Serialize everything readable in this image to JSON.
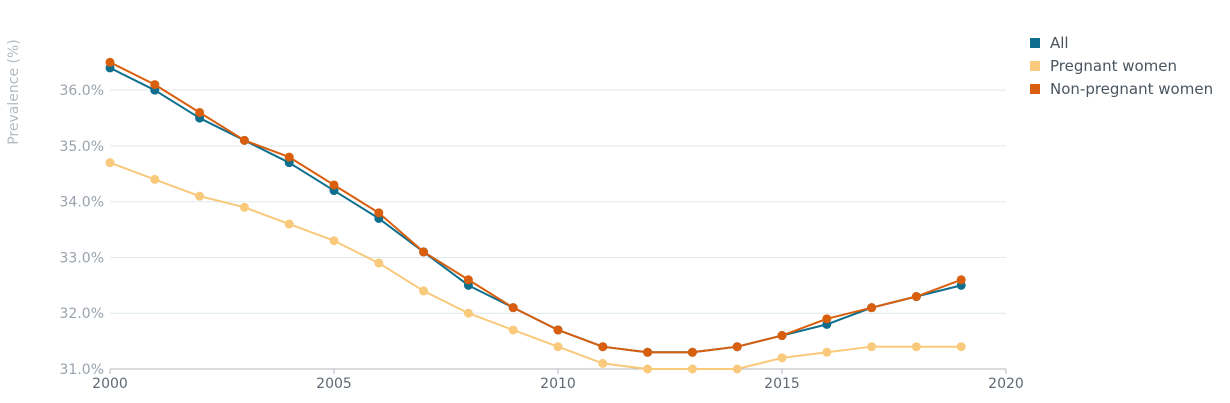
{
  "chart_data": {
    "type": "line",
    "title": "",
    "xlabel": "",
    "ylabel": "Prevalence (%)",
    "x": [
      2000,
      2001,
      2002,
      2003,
      2004,
      2005,
      2006,
      2007,
      2008,
      2009,
      2010,
      2011,
      2012,
      2013,
      2014,
      2015,
      2016,
      2017,
      2018,
      2019
    ],
    "xlim": [
      2000,
      2020
    ],
    "xticks": [
      "2000",
      "2005",
      "2010",
      "2015",
      "2020"
    ],
    "ylim": [
      31.0,
      36.9
    ],
    "yticks": [
      "31.0%",
      "32.0%",
      "33.0%",
      "34.0%",
      "35.0%",
      "36.0%"
    ],
    "grid": true,
    "legend_position": "top-right",
    "series": [
      {
        "name": "All",
        "color": "#0d6e8e",
        "values": [
          36.4,
          36.0,
          35.5,
          35.1,
          34.7,
          34.2,
          33.7,
          33.1,
          32.5,
          32.1,
          31.7,
          31.4,
          31.3,
          31.3,
          31.4,
          31.6,
          31.8,
          32.1,
          32.3,
          32.5
        ]
      },
      {
        "name": "Pregnant women",
        "color": "#f9c97c",
        "values": [
          34.7,
          34.4,
          34.1,
          33.9,
          33.6,
          33.3,
          32.9,
          32.4,
          32.0,
          31.7,
          31.4,
          31.1,
          31.0,
          31.0,
          31.0,
          31.2,
          31.3,
          31.4,
          31.4,
          31.4
        ]
      },
      {
        "name": "Non-pregnant women",
        "color": "#d95f0e",
        "values": [
          36.5,
          36.1,
          35.6,
          35.1,
          34.8,
          34.3,
          33.8,
          33.1,
          32.6,
          32.1,
          31.7,
          31.4,
          31.3,
          31.3,
          31.4,
          31.6,
          31.9,
          32.1,
          32.3,
          32.6
        ]
      }
    ]
  }
}
